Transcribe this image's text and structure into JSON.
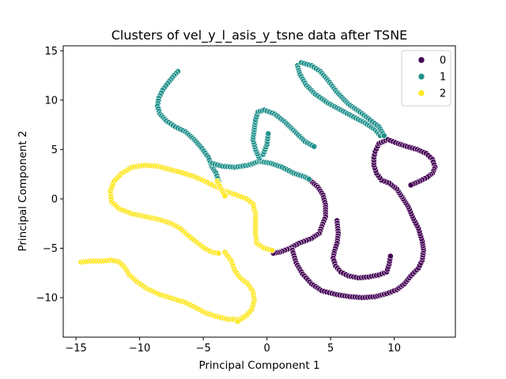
{
  "chart_data": {
    "type": "scatter",
    "title": "Clusters of vel_y_l_asis_y_tsne data after TSNE",
    "xlabel": "Principal Component 1",
    "ylabel": "Principal Component 2",
    "xlim": [
      -16,
      14.8
    ],
    "ylim": [
      -14,
      15.5
    ],
    "xticks": [
      -15,
      -10,
      -5,
      0,
      5,
      10
    ],
    "yticks": [
      -10,
      -5,
      0,
      5,
      10,
      15
    ],
    "grid": false,
    "legend_position": "top-right",
    "series": [
      {
        "name": "0",
        "color": "#440154",
        "path": [
          [
            3.3,
            2.0
          ],
          [
            4.0,
            1.2
          ],
          [
            4.4,
            0.4
          ],
          [
            4.6,
            -0.6
          ],
          [
            4.6,
            -1.8
          ],
          [
            4.3,
            -2.8
          ],
          [
            4.1,
            -3.5
          ],
          [
            3.5,
            -4.0
          ],
          [
            2.5,
            -4.5
          ],
          [
            1.8,
            -5.0
          ],
          [
            1.0,
            -5.4
          ],
          [
            0.5,
            -5.5
          ]
        ],
        "path2": [
          [
            2.0,
            -5.2
          ],
          [
            2.3,
            -6.5
          ],
          [
            2.8,
            -7.6
          ],
          [
            3.5,
            -8.6
          ],
          [
            4.3,
            -9.3
          ],
          [
            5.5,
            -9.7
          ],
          [
            6.5,
            -9.9
          ],
          [
            7.5,
            -10.0
          ],
          [
            8.5,
            -9.9
          ],
          [
            9.4,
            -9.6
          ],
          [
            10.2,
            -9.2
          ],
          [
            10.8,
            -8.6
          ],
          [
            11.3,
            -7.8
          ],
          [
            11.9,
            -7.0
          ],
          [
            12.2,
            -6.2
          ],
          [
            12.3,
            -5.2
          ],
          [
            12.2,
            -4.3
          ],
          [
            11.9,
            -3.0
          ],
          [
            11.5,
            -2.0
          ],
          [
            11.1,
            -0.8
          ],
          [
            10.6,
            0.2
          ],
          [
            10.2,
            1.0
          ]
        ],
        "path3": [
          [
            10.2,
            1.0
          ],
          [
            9.6,
            1.6
          ],
          [
            9.0,
            1.9
          ],
          [
            8.6,
            2.6
          ],
          [
            8.4,
            3.4
          ],
          [
            8.4,
            4.2
          ],
          [
            8.5,
            4.8
          ],
          [
            8.8,
            5.6
          ],
          [
            9.5,
            6.0
          ],
          [
            10.3,
            5.6
          ],
          [
            11.0,
            5.3
          ],
          [
            11.8,
            5.0
          ],
          [
            12.5,
            4.6
          ],
          [
            13.0,
            4.0
          ],
          [
            13.2,
            3.2
          ],
          [
            13.0,
            2.6
          ],
          [
            12.6,
            2.2
          ],
          [
            12.0,
            1.8
          ],
          [
            11.3,
            1.4
          ]
        ],
        "path4": [
          [
            5.5,
            -2.2
          ],
          [
            5.6,
            -3.5
          ],
          [
            5.5,
            -4.5
          ],
          [
            5.3,
            -5.3
          ],
          [
            5.2,
            -6.0
          ],
          [
            5.4,
            -6.8
          ],
          [
            5.8,
            -7.4
          ],
          [
            6.4,
            -7.8
          ],
          [
            7.2,
            -8.0
          ],
          [
            8.0,
            -7.9
          ],
          [
            8.8,
            -7.7
          ],
          [
            9.4,
            -7.4
          ],
          [
            9.6,
            -6.6
          ],
          [
            9.7,
            -5.8
          ]
        ]
      },
      {
        "name": "1",
        "color": "#21918c",
        "path": [
          [
            -7.0,
            12.9
          ],
          [
            -7.3,
            12.5
          ],
          [
            -7.8,
            11.7
          ],
          [
            -8.2,
            11.0
          ],
          [
            -8.5,
            10.2
          ],
          [
            -8.6,
            9.4
          ],
          [
            -8.4,
            8.6
          ],
          [
            -7.9,
            7.9
          ],
          [
            -7.2,
            7.3
          ],
          [
            -6.4,
            6.8
          ],
          [
            -5.7,
            6.0
          ],
          [
            -5.1,
            5.1
          ],
          [
            -4.6,
            4.2
          ],
          [
            -4.3,
            3.2
          ],
          [
            -4.0,
            2.6
          ],
          [
            -3.8,
            1.8
          ]
        ],
        "path2": [
          [
            -4.3,
            3.6
          ],
          [
            -3.5,
            3.3
          ],
          [
            -2.5,
            3.2
          ],
          [
            -1.5,
            3.4
          ],
          [
            -0.6,
            3.8
          ],
          [
            0.3,
            3.6
          ],
          [
            1.2,
            3.2
          ],
          [
            2.1,
            2.6
          ],
          [
            3.0,
            2.2
          ],
          [
            3.3,
            2.0
          ]
        ],
        "path3": [
          [
            -0.6,
            4.1
          ],
          [
            -0.9,
            5.0
          ],
          [
            -1.1,
            6.0
          ],
          [
            -1.0,
            7.0
          ],
          [
            -0.9,
            8.0
          ],
          [
            -0.7,
            8.8
          ],
          [
            -0.2,
            9.0
          ],
          [
            0.6,
            8.6
          ],
          [
            1.4,
            7.8
          ],
          [
            2.2,
            6.8
          ],
          [
            3.0,
            5.8
          ],
          [
            3.7,
            5.3
          ]
        ],
        "path4": [
          [
            -0.3,
            4.5
          ],
          [
            0.0,
            5.5
          ],
          [
            0.1,
            6.6
          ]
        ],
        "path5": [
          [
            2.4,
            13.5
          ],
          [
            2.6,
            12.6
          ],
          [
            3.1,
            11.5
          ],
          [
            3.8,
            10.6
          ],
          [
            4.8,
            9.7
          ],
          [
            5.8,
            9.0
          ],
          [
            6.8,
            8.3
          ],
          [
            7.7,
            7.7
          ],
          [
            8.5,
            7.0
          ],
          [
            8.9,
            6.4
          ]
        ],
        "path6": [
          [
            2.7,
            13.8
          ],
          [
            3.5,
            13.5
          ],
          [
            4.2,
            12.9
          ],
          [
            4.8,
            12.0
          ],
          [
            5.5,
            10.8
          ],
          [
            6.4,
            9.6
          ],
          [
            7.3,
            8.8
          ],
          [
            8.1,
            8.0
          ],
          [
            8.8,
            7.3
          ],
          [
            9.2,
            6.4
          ]
        ]
      },
      {
        "name": "2",
        "color": "#fde725",
        "path": [
          [
            -12.3,
            0.8
          ],
          [
            -12.2,
            -0.3
          ],
          [
            -11.6,
            -1.0
          ],
          [
            -10.6,
            -1.5
          ],
          [
            -9.5,
            -1.8
          ],
          [
            -8.4,
            -2.1
          ],
          [
            -7.5,
            -2.5
          ],
          [
            -6.8,
            -3.0
          ],
          [
            -6.2,
            -3.7
          ],
          [
            -5.5,
            -4.4
          ],
          [
            -4.9,
            -5.0
          ],
          [
            -4.3,
            -5.4
          ],
          [
            -3.8,
            -5.5
          ]
        ],
        "path2": [
          [
            -12.3,
            0.8
          ],
          [
            -12.0,
            1.8
          ],
          [
            -11.4,
            2.6
          ],
          [
            -10.6,
            3.2
          ],
          [
            -9.6,
            3.4
          ],
          [
            -8.6,
            3.3
          ],
          [
            -7.7,
            3.0
          ],
          [
            -6.8,
            2.7
          ],
          [
            -5.8,
            2.3
          ],
          [
            -4.9,
            1.8
          ],
          [
            -4.1,
            1.3
          ],
          [
            -3.3,
            0.8
          ],
          [
            -2.4,
            0.4
          ],
          [
            -1.6,
            0.0
          ],
          [
            -1.1,
            -0.5
          ],
          [
            -0.9,
            -1.5
          ],
          [
            -0.9,
            -2.4
          ],
          [
            -0.9,
            -3.5
          ],
          [
            -0.8,
            -4.5
          ],
          [
            -0.2,
            -5.0
          ],
          [
            0.4,
            -5.2
          ]
        ],
        "path3": [
          [
            -14.6,
            -6.4
          ],
          [
            -13.8,
            -6.3
          ],
          [
            -13.0,
            -6.3
          ],
          [
            -12.2,
            -6.2
          ],
          [
            -11.6,
            -6.4
          ],
          [
            -11.2,
            -6.9
          ],
          [
            -10.8,
            -7.7
          ],
          [
            -10.2,
            -8.4
          ],
          [
            -9.4,
            -9.1
          ],
          [
            -8.4,
            -9.7
          ],
          [
            -7.4,
            -10.1
          ],
          [
            -6.4,
            -10.5
          ],
          [
            -5.6,
            -11.0
          ],
          [
            -4.9,
            -11.5
          ],
          [
            -4.0,
            -11.9
          ],
          [
            -3.0,
            -12.2
          ],
          [
            -2.2,
            -12.2
          ],
          [
            -1.6,
            -11.7
          ]
        ],
        "path4": [
          [
            -3.3,
            -5.4
          ],
          [
            -2.8,
            -6.3
          ],
          [
            -2.5,
            -7.3
          ],
          [
            -2.1,
            -8.0
          ],
          [
            -1.5,
            -8.6
          ],
          [
            -1.1,
            -9.4
          ],
          [
            -1.0,
            -10.3
          ],
          [
            -1.2,
            -11.2
          ],
          [
            -1.6,
            -11.8
          ],
          [
            -2.3,
            -12.4
          ]
        ],
        "path5": [
          [
            -3.9,
            1.8
          ],
          [
            -3.6,
            1.0
          ],
          [
            -3.3,
            0.3
          ]
        ]
      }
    ]
  }
}
